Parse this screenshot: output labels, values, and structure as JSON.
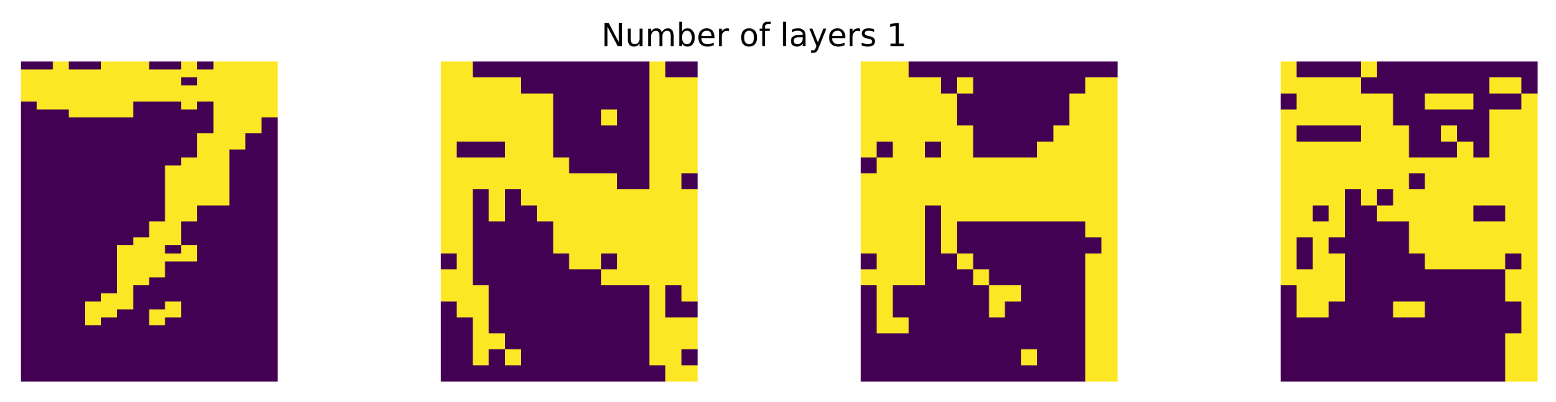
{
  "title": "Number of layers 1",
  "colors": {
    "zero": "#440154",
    "one": "#fde725"
  },
  "chart_data": [
    {
      "type": "heatmap",
      "name": "panel-1",
      "rows": [
        "0010011100101111",
        "1111111111111111",
        "1111111111011111",
        "1111111111111111",
        "1111111111111111",
        "0111111000101111",
        "0001111000001111",
        "0000000000001110",
        "0000000000001110",
        "0000000000011100",
        "0000000000011100",
        "0000000000011000",
        "0000000000111000",
        "0000000001111000",
        "0000000001111000",
        "0000000001111000",
        "0000000001111000",
        "0000000001111000",
        "0000000001100000",
        "0000000001100000",
        "0000000011000000",
        "0000000011000000",
        "0000000111000000",
        "0000001110100000",
        "0000001111100000",
        "0000001110000000",
        "0000001110000000",
        "0000001100000000",
        "0000001000000000",
        "0000011000000000",
        "0000111001000000",
        "0000110011000000",
        "0000100010000000",
        "0000000000000000",
        "0000000000000000",
        "0000000000000000",
        "0000000000000000",
        "0000000000000000",
        "0000000000000000",
        "0000000000000000"
      ]
    },
    {
      "type": "heatmap",
      "name": "panel-2",
      "rows": [
        "1100000000000100",
        "1111100000000111",
        "1111111000000111",
        "1111111000100111",
        "1111111000000111",
        "1000111000000111",
        "1111111100000111",
        "1111111111100110",
        "1101011111111111",
        "1101001111111111",
        "1100000111111111",
        "1100000111111111",
        "0100000011011111",
        "1100000000111111",
        "1110000000000101",
        "0110000000000100",
        "0010000000000111",
        "0011000000000111",
        "0010100000000110",
        "0000000000000011"
      ]
    },
    {
      "type": "heatmap",
      "name": "panel-3",
      "rows": [
        "1110000000000000",
        "1111101000000011",
        "1111110000000111",
        "1111110000000111",
        "1111111000001111",
        "1011011000011111",
        "0111111111111111",
        "1111111111111111",
        "1111111111111111",
        "1111011111111111",
        "1111010000000011",
        "1111010000000001",
        "0111001000000011",
        "1111000100000011",
        "0100000011000011",
        "0100000010000011",
        "0110000000000011",
        "0000000000000011",
        "0000000000100011",
        "0000000000000011"
      ]
    },
    {
      "type": "heatmap",
      "name": "panel-4",
      "rows": [
        "1000010000000000",
        "1111100000000110",
        "0111111001110001",
        "1111111000000111",
        "1000011100100111",
        "1111111100010111",
        "1111111111111111",
        "1111111101111111",
        "1111010111111111",
        "1101001111110011",
        "1111000011111111",
        "1010000011111111",
        "1011000001111101",
        "1111000000000011",
        "0111000000000011",
        "0110000110000001",
        "0000000000000001",
        "0000000000000011",
        "0000000000000011",
        "0000000000000011"
      ]
    }
  ]
}
